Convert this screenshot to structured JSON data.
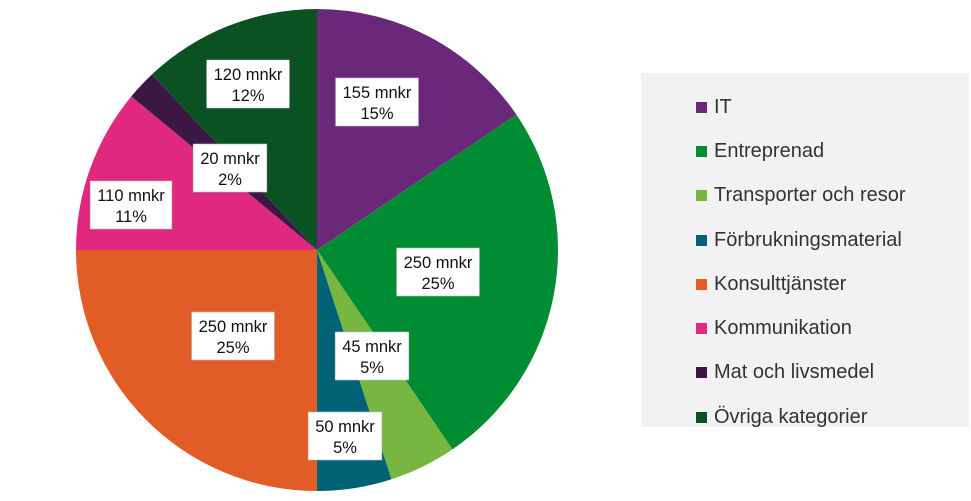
{
  "chart_data": {
    "type": "pie",
    "start_angle_deg": 0,
    "direction": "clockwise",
    "legend_position": "right",
    "slices": [
      {
        "name": "IT",
        "value": 155,
        "value_label": "155 mnkr",
        "percent_label": "15%",
        "color": "#6b2779"
      },
      {
        "name": "Entreprenad",
        "value": 250,
        "value_label": "250 mnkr",
        "percent_label": "25%",
        "color": "#008c33"
      },
      {
        "name": "Transporter och resor",
        "value": 45,
        "value_label": "45 mnkr",
        "percent_label": "5%",
        "color": "#78b642"
      },
      {
        "name": "Förbrukningsmaterial",
        "value": 50,
        "value_label": "50 mnkr",
        "percent_label": "5%",
        "color": "#006274"
      },
      {
        "name": "Konsulttjänster",
        "value": 250,
        "value_label": "250 mnkr",
        "percent_label": "25%",
        "color": "#e15c27"
      },
      {
        "name": "Kommunikation",
        "value": 110,
        "value_label": "110 mnkr",
        "percent_label": "11%",
        "color": "#e0297e"
      },
      {
        "name": "Mat och livsmedel",
        "value": 20,
        "value_label": "20 mnkr",
        "percent_label": "2%",
        "color": "#3a1843"
      },
      {
        "name": "Övriga kategorier",
        "value": 120,
        "value_label": "120 mnkr",
        "percent_label": "12%",
        "color": "#0b5223"
      }
    ]
  }
}
